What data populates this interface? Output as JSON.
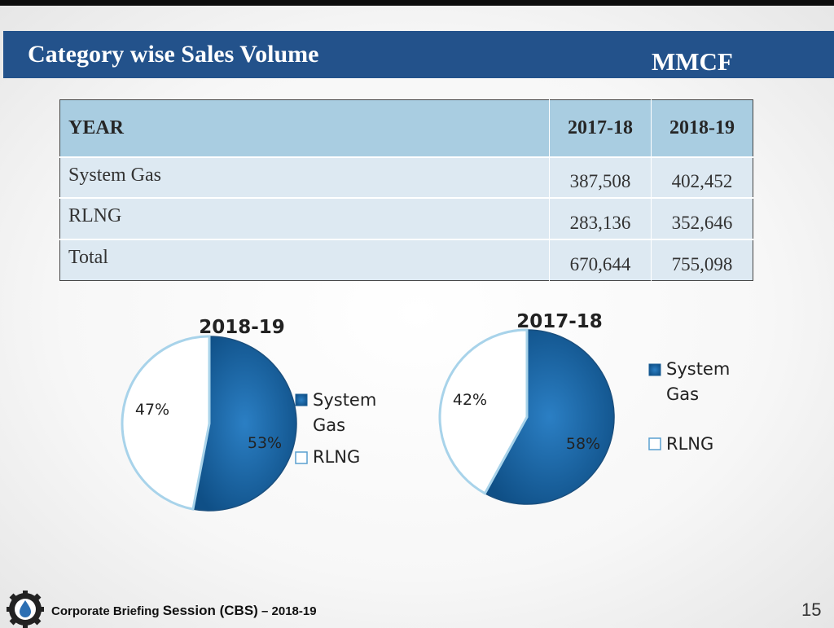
{
  "header": {
    "title": "Category wise Sales Volume",
    "unit": "MMCF"
  },
  "table": {
    "headers": [
      "YEAR",
      "2017-18",
      "2018-19"
    ],
    "rows": [
      [
        "System Gas",
        "387,508",
        "402,452"
      ],
      [
        "RLNG",
        "283,136",
        "352,646"
      ],
      [
        "Total",
        "670,644",
        "755,098"
      ]
    ]
  },
  "chart_data": [
    {
      "type": "pie",
      "title": "2018-19",
      "labels": [
        "System Gas",
        "RLNG"
      ],
      "values": [
        53,
        47
      ],
      "value_labels": [
        "53%",
        "47%"
      ],
      "colors": [
        "#1f6aa8",
        "#ffffff"
      ],
      "legend_labels": [
        "System",
        "Gas",
        "RLNG"
      ]
    },
    {
      "type": "pie",
      "title": "2017-18",
      "labels": [
        "System Gas",
        "RLNG"
      ],
      "values": [
        58,
        42
      ],
      "value_labels": [
        "58%",
        "42%"
      ],
      "colors": [
        "#1f6aa8",
        "#ffffff"
      ],
      "legend_labels": [
        "System",
        "Gas",
        "RLNG"
      ]
    }
  ],
  "footer": {
    "text_a": "Corporate Briefing ",
    "text_b": "Session (CBS)",
    "text_c": " – 2018-19",
    "page": "15"
  }
}
